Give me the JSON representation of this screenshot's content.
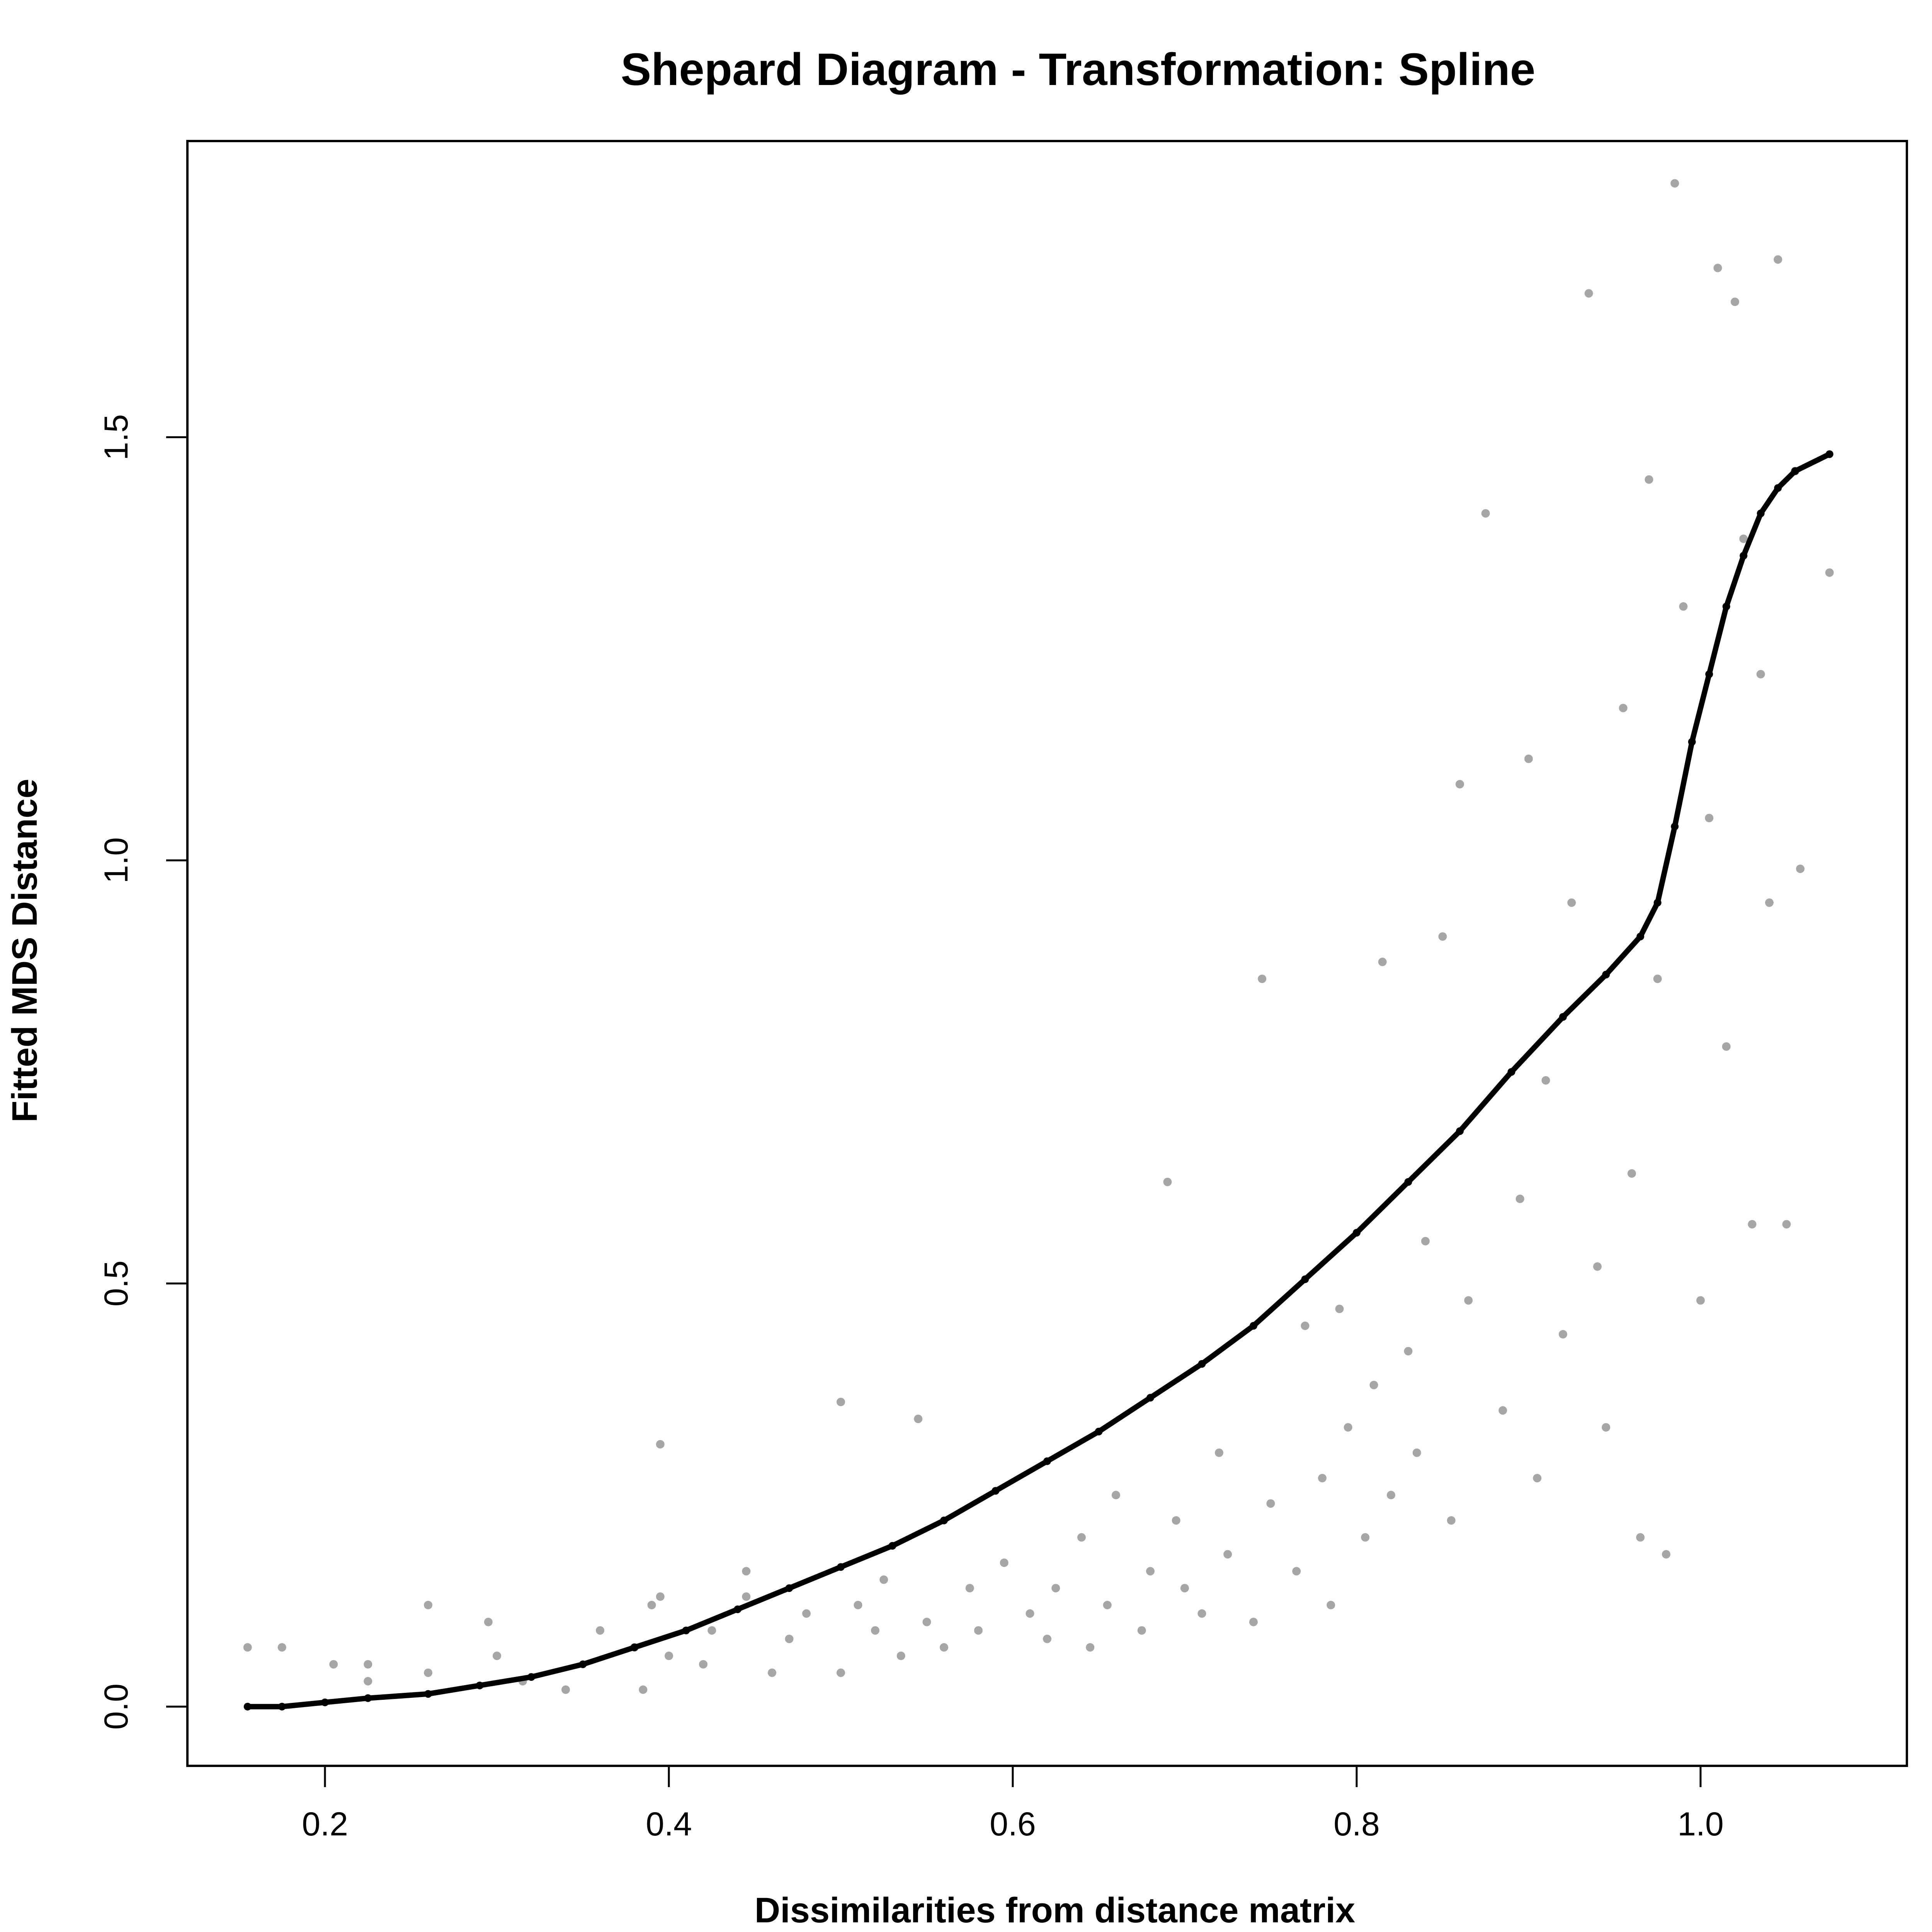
{
  "chart_data": {
    "type": "scatter",
    "title": "Shepard Diagram - Transformation: Spline",
    "xlabel": "Dissimilarities from distance matrix",
    "ylabel": "Fitted MDS Distance",
    "xlim": [
      0.12,
      1.12
    ],
    "ylim": [
      -0.07,
      1.85
    ],
    "x_ticks": [
      0.2,
      0.4,
      0.6,
      0.8,
      1.0
    ],
    "x_tick_labels": [
      "0.2",
      "0.4",
      "0.6",
      "0.8",
      "1.0"
    ],
    "y_ticks": [
      0.0,
      0.5,
      1.0,
      1.5
    ],
    "y_tick_labels": [
      "0.0",
      "0.5",
      "1.0",
      "1.5"
    ],
    "grid": false,
    "legend": "none",
    "colors": {
      "points": "#a6a6a6",
      "fit": "#000000",
      "axes": "#000000",
      "background": "#ffffff"
    },
    "series": [
      {
        "kind": "observed",
        "values": [
          [
            0.155,
            0.07
          ],
          [
            0.175,
            0.07
          ],
          [
            0.205,
            0.05
          ],
          [
            0.225,
            0.05
          ],
          [
            0.225,
            0.03
          ],
          [
            0.26,
            0.12
          ],
          [
            0.26,
            0.04
          ],
          [
            0.295,
            0.1
          ],
          [
            0.3,
            0.06
          ],
          [
            0.315,
            0.03
          ],
          [
            0.34,
            0.02
          ],
          [
            0.36,
            0.09
          ],
          [
            0.38,
            0.07
          ],
          [
            0.385,
            0.02
          ],
          [
            0.39,
            0.12
          ],
          [
            0.395,
            0.31
          ],
          [
            0.395,
            0.13
          ],
          [
            0.4,
            0.06
          ],
          [
            0.42,
            0.05
          ],
          [
            0.425,
            0.09
          ],
          [
            0.445,
            0.16
          ],
          [
            0.445,
            0.13
          ],
          [
            0.46,
            0.04
          ],
          [
            0.47,
            0.08
          ],
          [
            0.48,
            0.11
          ],
          [
            0.5,
            0.36
          ],
          [
            0.5,
            0.04
          ],
          [
            0.51,
            0.12
          ],
          [
            0.52,
            0.09
          ],
          [
            0.525,
            0.15
          ],
          [
            0.535,
            0.06
          ],
          [
            0.545,
            0.34
          ],
          [
            0.55,
            0.1
          ],
          [
            0.56,
            0.07
          ],
          [
            0.575,
            0.14
          ],
          [
            0.58,
            0.09
          ],
          [
            0.595,
            0.17
          ],
          [
            0.61,
            0.11
          ],
          [
            0.62,
            0.08
          ],
          [
            0.625,
            0.14
          ],
          [
            0.64,
            0.2
          ],
          [
            0.645,
            0.07
          ],
          [
            0.655,
            0.12
          ],
          [
            0.66,
            0.25
          ],
          [
            0.675,
            0.09
          ],
          [
            0.68,
            0.16
          ],
          [
            0.69,
            0.62
          ],
          [
            0.695,
            0.22
          ],
          [
            0.7,
            0.14
          ],
          [
            0.71,
            0.11
          ],
          [
            0.72,
            0.3
          ],
          [
            0.725,
            0.18
          ],
          [
            0.74,
            0.1
          ],
          [
            0.745,
            0.86
          ],
          [
            0.75,
            0.24
          ],
          [
            0.765,
            0.16
          ],
          [
            0.77,
            0.45
          ],
          [
            0.78,
            0.27
          ],
          [
            0.785,
            0.12
          ],
          [
            0.79,
            0.47
          ],
          [
            0.795,
            0.33
          ],
          [
            0.805,
            0.2
          ],
          [
            0.81,
            0.38
          ],
          [
            0.815,
            0.88
          ],
          [
            0.82,
            0.25
          ],
          [
            0.83,
            0.42
          ],
          [
            0.835,
            0.3
          ],
          [
            0.84,
            0.55
          ],
          [
            0.85,
            0.91
          ],
          [
            0.855,
            0.22
          ],
          [
            0.86,
            1.09
          ],
          [
            0.865,
            0.48
          ],
          [
            0.875,
            1.41
          ],
          [
            0.885,
            0.35
          ],
          [
            0.895,
            0.6
          ],
          [
            0.9,
            1.12
          ],
          [
            0.905,
            0.27
          ],
          [
            0.91,
            0.74
          ],
          [
            0.92,
            0.44
          ],
          [
            0.925,
            0.95
          ],
          [
            0.935,
            1.67
          ],
          [
            0.94,
            0.52
          ],
          [
            0.945,
            0.33
          ],
          [
            0.955,
            1.18
          ],
          [
            0.96,
            0.63
          ],
          [
            0.965,
            0.2
          ],
          [
            0.97,
            1.45
          ],
          [
            0.975,
            0.86
          ],
          [
            0.985,
            1.8
          ],
          [
            0.99,
            1.3
          ],
          [
            1.0,
            0.48
          ],
          [
            1.005,
            1.05
          ],
          [
            1.01,
            1.7
          ],
          [
            1.015,
            0.78
          ],
          [
            1.02,
            1.66
          ],
          [
            1.025,
            1.38
          ],
          [
            1.03,
            0.57
          ],
          [
            1.035,
            1.22
          ],
          [
            1.04,
            0.95
          ],
          [
            1.045,
            1.71
          ],
          [
            1.05,
            0.57
          ],
          [
            1.055,
            1.46
          ],
          [
            1.075,
            1.34
          ],
          [
            1.058,
            0.99
          ],
          [
            0.98,
            0.18
          ]
        ]
      },
      {
        "kind": "fitted",
        "values": [
          [
            0.155,
            0.0
          ],
          [
            0.175,
            0.0
          ],
          [
            0.2,
            0.005
          ],
          [
            0.225,
            0.01
          ],
          [
            0.26,
            0.015
          ],
          [
            0.29,
            0.025
          ],
          [
            0.32,
            0.035
          ],
          [
            0.35,
            0.05
          ],
          [
            0.38,
            0.07
          ],
          [
            0.41,
            0.09
          ],
          [
            0.44,
            0.115
          ],
          [
            0.47,
            0.14
          ],
          [
            0.5,
            0.165
          ],
          [
            0.53,
            0.19
          ],
          [
            0.56,
            0.22
          ],
          [
            0.59,
            0.255
          ],
          [
            0.62,
            0.29
          ],
          [
            0.65,
            0.325
          ],
          [
            0.68,
            0.365
          ],
          [
            0.71,
            0.405
          ],
          [
            0.74,
            0.45
          ],
          [
            0.77,
            0.505
          ],
          [
            0.8,
            0.56
          ],
          [
            0.83,
            0.62
          ],
          [
            0.86,
            0.68
          ],
          [
            0.89,
            0.75
          ],
          [
            0.92,
            0.815
          ],
          [
            0.945,
            0.865
          ],
          [
            0.965,
            0.91
          ],
          [
            0.975,
            0.95
          ],
          [
            0.985,
            1.04
          ],
          [
            0.995,
            1.14
          ],
          [
            1.005,
            1.22
          ],
          [
            1.015,
            1.3
          ],
          [
            1.025,
            1.36
          ],
          [
            1.035,
            1.41
          ],
          [
            1.045,
            1.44
          ],
          [
            1.055,
            1.46
          ],
          [
            1.075,
            1.48
          ]
        ]
      }
    ]
  }
}
